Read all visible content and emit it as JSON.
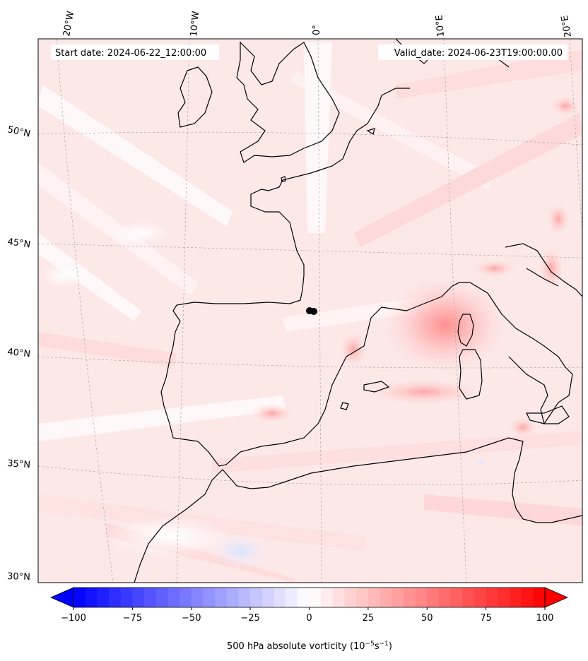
{
  "header": {
    "start_date": "Start date: 2024-06-22_12:00:00",
    "valid_date": "Valid_date: 2024-06-23T19:00:00.00"
  },
  "lon_labels": [
    "20°W",
    "10°W",
    "0°",
    "10°E",
    "20°E"
  ],
  "lat_labels": [
    "50°N",
    "45°N",
    "40°N",
    "35°N",
    "30°N"
  ],
  "colorbar": {
    "ticks": [
      "−100",
      "−75",
      "−50",
      "−25",
      "0",
      "25",
      "50",
      "75",
      "100"
    ],
    "min": -100,
    "max": 100,
    "label": "500 hPa absolute vorticity (10",
    "label_exp1": "−5",
    "label_mid": "s",
    "label_exp2": "−1",
    "label_end": ")",
    "neg_color": "#0000ff",
    "pos_color": "#ff0000",
    "mid_color": "#ffffff"
  },
  "map": {
    "background_color": "#fde9e9",
    "feature": "vortex-over-western-mediterranean"
  }
}
